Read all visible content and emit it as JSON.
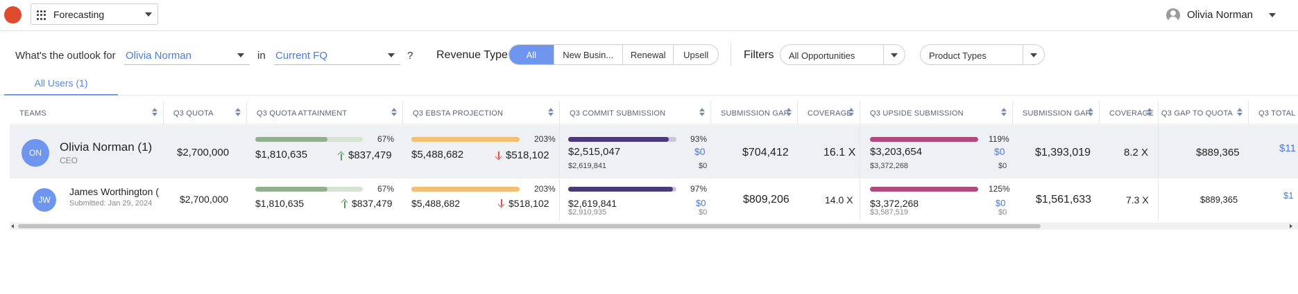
{
  "header": {
    "app_name": "Forecasting",
    "user_name": "Olivia Norman"
  },
  "outlook": {
    "question_prefix": "What's the outlook for",
    "user": "Olivia Norman",
    "in_word": "in",
    "period": "Current FQ",
    "question_mark": "?"
  },
  "revenue_type": {
    "label": "Revenue Type",
    "options": [
      "All",
      "New Busin...",
      "Renewal",
      "Upsell"
    ],
    "selected": "All"
  },
  "filters": {
    "label": "Filters",
    "opportunities": "All Opportunities",
    "product_types": "Product Types"
  },
  "tabs": {
    "all_users": "All Users (1)"
  },
  "columns": [
    "TEAMS",
    "Q3 QUOTA",
    "Q3 QUOTA ATTAINMENT",
    "Q3 EBSTA PROJECTION",
    "Q3 COMMIT SUBMISSION",
    "SUBMISSION GAP",
    "COVERAGE",
    "Q3 UPSIDE SUBMISSION",
    "SUBMISSION GAP",
    "COVERAGE",
    "Q3 GAP TO QUOTA",
    "Q3 TOTAL"
  ],
  "rows": [
    {
      "initials": "ON",
      "name": "Olivia Norman (1)",
      "sub": "CEO",
      "quota": "$2,700,000",
      "attain_pct_label": "67%",
      "attain_pct": 0.67,
      "attain_value": "$1,810,635",
      "attain_delta": "$837,479",
      "ebsta_pct_label": "203%",
      "ebsta_pct": 1.0,
      "ebsta_value": "$5,488,682",
      "ebsta_delta": "$518,102",
      "commit_pct_label": "93%",
      "commit_pct": 0.93,
      "commit_value": "$2,515,047",
      "commit_delta": "$0",
      "commit_sub": "$2,619,841",
      "commit_sub_delta": "$0",
      "gap1": "$704,412",
      "coverage1": "16.1 X",
      "upside_pct_label": "119%",
      "upside_pct": 1.0,
      "upside_value": "$3,203,654",
      "upside_delta": "$0",
      "upside_sub": "$3,372,268",
      "upside_sub_delta": "$0",
      "gap2": "$1,393,019",
      "coverage2": "8.2 X",
      "gap_to_quota": "$889,365",
      "total": "$11"
    },
    {
      "initials": "JW",
      "name": "James Worthington (",
      "sub": "Submitted: Jan 29, 2024",
      "quota": "$2,700,000",
      "attain_pct_label": "67%",
      "attain_pct": 0.67,
      "attain_value": "$1,810,635",
      "attain_delta": "$837,479",
      "ebsta_pct_label": "203%",
      "ebsta_pct": 1.0,
      "ebsta_value": "$5,488,682",
      "ebsta_delta": "$518,102",
      "commit_pct_label": "97%",
      "commit_pct": 0.97,
      "commit_value": "$2,619,841",
      "commit_delta": "$0",
      "commit_sub": "$2,910,935",
      "commit_sub_delta": "$0",
      "gap1": "$809,206",
      "coverage1": "14.0 X",
      "upside_pct_label": "125%",
      "upside_pct": 1.0,
      "upside_value": "$3,372,268",
      "upside_delta": "$0",
      "upside_sub": "$3,587,519",
      "upside_sub_delta": "$0",
      "gap2": "$1,561,633",
      "coverage2": "7.3 X",
      "gap_to_quota": "$889,365",
      "total": "$1"
    }
  ],
  "colors": {
    "accent": "#6e96ee",
    "attain_fill": "#93b08e",
    "attain_track": "#d6e2d4",
    "ebsta_fill": "#f2c073",
    "commit_fill": "#4b3a78",
    "commit_track": "#c9c6d6",
    "upside_fill": "#b04a7c",
    "delta_blue": "#4a7bd9"
  }
}
